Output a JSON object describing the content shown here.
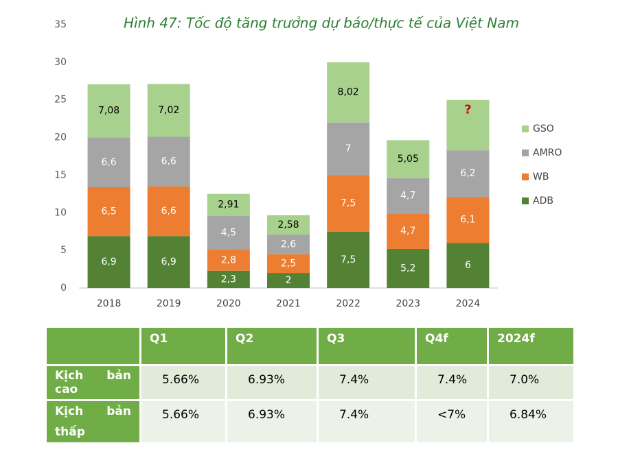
{
  "chart_data": {
    "type": "stacked_bar",
    "title": "Hình 47: Tốc độ tăng trưởng dự báo/thực tế của Việt Nam",
    "categories": [
      "2018",
      "2019",
      "2020",
      "2021",
      "2022",
      "2023",
      "2024"
    ],
    "series": [
      {
        "name": "ADB",
        "color": "#548235",
        "label_color": "#ffffff",
        "values": [
          6.9,
          6.9,
          2.3,
          2,
          7.5,
          5.2,
          6
        ],
        "value_labels": [
          "6,9",
          "6,9",
          "2,3",
          "2",
          "7,5",
          "5,2",
          "6"
        ]
      },
      {
        "name": "WB",
        "color": "#ed7d31",
        "label_color": "#ffffff",
        "values": [
          6.5,
          6.6,
          2.8,
          2.5,
          7.5,
          4.7,
          6.1
        ],
        "value_labels": [
          "6,5",
          "6,6",
          "2,8",
          "2,5",
          "7,5",
          "4,7",
          "6,1"
        ]
      },
      {
        "name": "AMRO",
        "color": "#a5a5a5",
        "label_color": "#ffffff",
        "values": [
          6.6,
          6.6,
          4.5,
          2.6,
          7,
          4.7,
          6.2
        ],
        "value_labels": [
          "6,6",
          "6,6",
          "4,5",
          "2,6",
          "7",
          "4,7",
          "6,2"
        ]
      },
      {
        "name": "GSO",
        "color": "#a9d18e",
        "label_color": "#000000",
        "values": [
          7.08,
          7.02,
          2.91,
          2.58,
          8.02,
          5.05,
          6.7
        ],
        "value_labels": [
          "7,08",
          "7,02",
          "2,91",
          "2,58",
          "8,02",
          "5,05",
          null
        ]
      }
    ],
    "annotation": "?",
    "ylim": [
      0,
      35
    ],
    "yticks": [
      0,
      5,
      10,
      15,
      20,
      25,
      30,
      35
    ],
    "grid": false,
    "legend": "right"
  },
  "table": {
    "header": [
      "Q1",
      "Q2",
      "Q3",
      "Q4f",
      "2024f"
    ],
    "rows": [
      {
        "label": "Kịch bản cao",
        "values": [
          "5.66%",
          "6.93%",
          "7.4%",
          "7.4%",
          "7.0%"
        ]
      },
      {
        "label": "Kịch bản thấp",
        "values": [
          "5.66%",
          "6.93%",
          "7.4%",
          "<7%",
          "6.84%"
        ]
      }
    ]
  }
}
